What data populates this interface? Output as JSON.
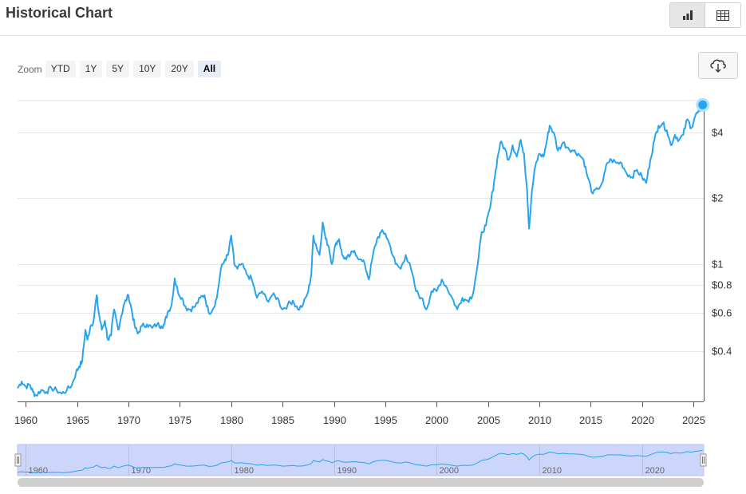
{
  "header": {
    "title": "Historical Chart"
  },
  "toolbar": {
    "chart_view_icon": "bar-chart-icon",
    "table_view_icon": "table-icon",
    "download_icon": "cloud-download-icon"
  },
  "zoom": {
    "label": "Zoom",
    "buttons": [
      {
        "label": "YTD"
      },
      {
        "label": "1Y"
      },
      {
        "label": "5Y"
      },
      {
        "label": "10Y"
      },
      {
        "label": "20Y"
      },
      {
        "label": "All",
        "active": true
      }
    ]
  },
  "colors": {
    "line": "#2aa3ef",
    "navigator_fill": "#ccd6fb"
  },
  "chart_data": {
    "type": "line",
    "title": "",
    "xlabel": "",
    "ylabel": "",
    "y_scale": "log",
    "x_ticks": [
      1960,
      1965,
      1970,
      1975,
      1980,
      1985,
      1990,
      1995,
      2000,
      2005,
      2010,
      2015,
      2020,
      2025
    ],
    "y_ticks": [
      {
        "value": 0.4,
        "label": "$0.4"
      },
      {
        "value": 0.6,
        "label": "$0.6"
      },
      {
        "value": 0.8,
        "label": "$0.8"
      },
      {
        "value": 1,
        "label": "$1"
      },
      {
        "value": 2,
        "label": "$2"
      },
      {
        "value": 4,
        "label": "$4"
      }
    ],
    "xlim": [
      1959.2,
      2026.0
    ],
    "ylim": [
      0.235,
      5.6
    ],
    "grid": true,
    "legend": "none",
    "series": [
      {
        "name": "",
        "points": [
          [
            1959.2,
            0.27
          ],
          [
            1959.6,
            0.29
          ],
          [
            1960.0,
            0.275
          ],
          [
            1960.4,
            0.28
          ],
          [
            1960.7,
            0.26
          ],
          [
            1961.0,
            0.25
          ],
          [
            1961.5,
            0.265
          ],
          [
            1962.0,
            0.26
          ],
          [
            1962.5,
            0.27
          ],
          [
            1963.0,
            0.265
          ],
          [
            1963.5,
            0.255
          ],
          [
            1964.0,
            0.265
          ],
          [
            1964.5,
            0.28
          ],
          [
            1964.9,
            0.32
          ],
          [
            1965.2,
            0.34
          ],
          [
            1965.5,
            0.36
          ],
          [
            1965.8,
            0.5
          ],
          [
            1966.0,
            0.45
          ],
          [
            1966.3,
            0.52
          ],
          [
            1966.6,
            0.55
          ],
          [
            1966.9,
            0.72
          ],
          [
            1967.1,
            0.6
          ],
          [
            1967.4,
            0.5
          ],
          [
            1967.7,
            0.55
          ],
          [
            1968.0,
            0.45
          ],
          [
            1968.3,
            0.47
          ],
          [
            1968.6,
            0.62
          ],
          [
            1969.0,
            0.5
          ],
          [
            1969.3,
            0.58
          ],
          [
            1969.6,
            0.66
          ],
          [
            1970.0,
            0.72
          ],
          [
            1970.3,
            0.62
          ],
          [
            1970.6,
            0.52
          ],
          [
            1970.9,
            0.48
          ],
          [
            1971.3,
            0.52
          ],
          [
            1971.8,
            0.53
          ],
          [
            1972.3,
            0.51
          ],
          [
            1972.8,
            0.53
          ],
          [
            1973.2,
            0.52
          ],
          [
            1973.5,
            0.53
          ],
          [
            1973.8,
            0.6
          ],
          [
            1974.2,
            0.65
          ],
          [
            1974.5,
            0.86
          ],
          [
            1974.8,
            0.75
          ],
          [
            1975.2,
            0.7
          ],
          [
            1975.6,
            0.63
          ],
          [
            1976.0,
            0.62
          ],
          [
            1976.5,
            0.64
          ],
          [
            1977.0,
            0.7
          ],
          [
            1977.4,
            0.72
          ],
          [
            1977.8,
            0.6
          ],
          [
            1978.2,
            0.62
          ],
          [
            1978.6,
            0.7
          ],
          [
            1979.0,
            0.95
          ],
          [
            1979.4,
            1.05
          ],
          [
            1979.7,
            1.1
          ],
          [
            1980.0,
            1.35
          ],
          [
            1980.3,
            1.0
          ],
          [
            1980.6,
            0.95
          ],
          [
            1981.0,
            1.0
          ],
          [
            1981.5,
            0.9
          ],
          [
            1982.0,
            0.85
          ],
          [
            1982.5,
            0.7
          ],
          [
            1983.0,
            0.75
          ],
          [
            1983.5,
            0.68
          ],
          [
            1984.0,
            0.72
          ],
          [
            1984.5,
            0.7
          ],
          [
            1985.0,
            0.62
          ],
          [
            1985.5,
            0.65
          ],
          [
            1986.0,
            0.68
          ],
          [
            1986.5,
            0.62
          ],
          [
            1987.0,
            0.65
          ],
          [
            1987.5,
            0.75
          ],
          [
            1987.8,
            0.9
          ],
          [
            1988.0,
            1.35
          ],
          [
            1988.3,
            1.2
          ],
          [
            1988.6,
            1.1
          ],
          [
            1988.9,
            1.55
          ],
          [
            1989.2,
            1.3
          ],
          [
            1989.5,
            1.2
          ],
          [
            1989.8,
            1.0
          ],
          [
            1990.2,
            1.25
          ],
          [
            1990.5,
            1.3
          ],
          [
            1990.8,
            1.1
          ],
          [
            1991.2,
            1.05
          ],
          [
            1991.6,
            1.1
          ],
          [
            1992.0,
            1.15
          ],
          [
            1992.5,
            1.05
          ],
          [
            1993.0,
            1.0
          ],
          [
            1993.4,
            0.85
          ],
          [
            1993.8,
            1.1
          ],
          [
            1994.2,
            1.3
          ],
          [
            1994.6,
            1.4
          ],
          [
            1995.0,
            1.38
          ],
          [
            1995.5,
            1.2
          ],
          [
            1996.0,
            1.0
          ],
          [
            1996.5,
            0.95
          ],
          [
            1997.0,
            1.1
          ],
          [
            1997.5,
            0.95
          ],
          [
            1998.0,
            0.75
          ],
          [
            1998.5,
            0.7
          ],
          [
            1999.0,
            0.62
          ],
          [
            1999.5,
            0.75
          ],
          [
            2000.0,
            0.75
          ],
          [
            2000.5,
            0.85
          ],
          [
            2001.0,
            0.78
          ],
          [
            2001.5,
            0.7
          ],
          [
            2002.0,
            0.62
          ],
          [
            2002.5,
            0.7
          ],
          [
            2003.0,
            0.68
          ],
          [
            2003.5,
            0.72
          ],
          [
            2004.0,
            1.0
          ],
          [
            2004.4,
            1.4
          ],
          [
            2004.8,
            1.5
          ],
          [
            2005.2,
            1.8
          ],
          [
            2005.6,
            2.4
          ],
          [
            2005.9,
            3.0
          ],
          [
            2006.2,
            3.6
          ],
          [
            2006.6,
            3.4
          ],
          [
            2007.0,
            3.0
          ],
          [
            2007.4,
            3.5
          ],
          [
            2007.8,
            3.1
          ],
          [
            2008.2,
            3.7
          ],
          [
            2008.5,
            3.2
          ],
          [
            2008.8,
            2.2
          ],
          [
            2009.0,
            1.45
          ],
          [
            2009.3,
            2.2
          ],
          [
            2009.6,
            2.8
          ],
          [
            2010.0,
            3.2
          ],
          [
            2010.4,
            3.1
          ],
          [
            2010.7,
            3.6
          ],
          [
            2011.0,
            4.3
          ],
          [
            2011.4,
            4.0
          ],
          [
            2011.8,
            3.3
          ],
          [
            2012.3,
            3.6
          ],
          [
            2012.8,
            3.4
          ],
          [
            2013.3,
            3.3
          ],
          [
            2013.8,
            3.2
          ],
          [
            2014.3,
            3.0
          ],
          [
            2014.7,
            2.5
          ],
          [
            2015.2,
            2.1
          ],
          [
            2015.7,
            2.2
          ],
          [
            2016.2,
            2.4
          ],
          [
            2016.6,
            2.9
          ],
          [
            2017.0,
            3.0
          ],
          [
            2017.5,
            2.9
          ],
          [
            2018.0,
            2.9
          ],
          [
            2018.5,
            2.6
          ],
          [
            2019.0,
            2.5
          ],
          [
            2019.5,
            2.7
          ],
          [
            2020.0,
            2.5
          ],
          [
            2020.4,
            2.35
          ],
          [
            2020.8,
            3.0
          ],
          [
            2021.2,
            3.7
          ],
          [
            2021.6,
            4.3
          ],
          [
            2022.0,
            4.4
          ],
          [
            2022.4,
            4.1
          ],
          [
            2022.8,
            3.5
          ],
          [
            2023.2,
            3.9
          ],
          [
            2023.6,
            3.7
          ],
          [
            2024.0,
            3.9
          ],
          [
            2024.4,
            4.6
          ],
          [
            2024.8,
            4.2
          ],
          [
            2025.2,
            4.8
          ],
          [
            2025.6,
            5.0
          ],
          [
            2025.9,
            5.35
          ]
        ]
      }
    ]
  },
  "navigator": {
    "labels": [
      "1960",
      "1970",
      "1980",
      "1990",
      "2000",
      "2010",
      "2020"
    ]
  }
}
